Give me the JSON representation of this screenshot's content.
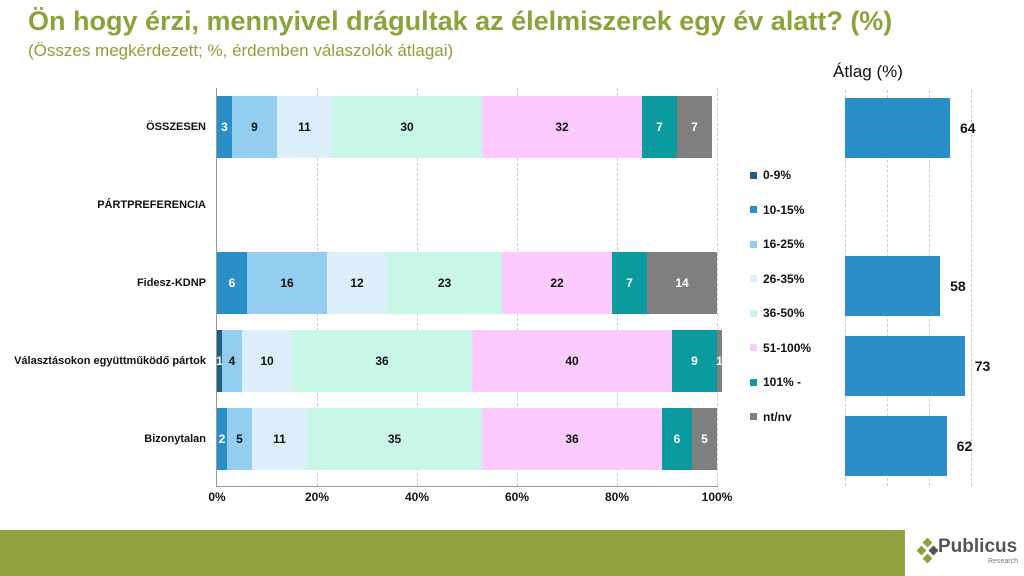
{
  "title": "Ön hogy érzi, mennyivel drágultak az élelmiszerek egy év alatt? (%)",
  "subtitle": "(Összes megkérdezett; %, érdemben válaszolók átlagai)",
  "logo": {
    "name": "Publicus",
    "sub": "Research"
  },
  "chart_data": [
    {
      "type": "bar",
      "stacked": true,
      "orientation": "horizontal",
      "categories": [
        "ÖSSZESEN",
        "PÁRTPREFERENCIA",
        "Fidesz-KDNP",
        "Választásokon együttműködő pártok",
        "Bizonytalan"
      ],
      "series": [
        {
          "name": "0-9%",
          "color": "#1f5f80",
          "values": [
            0,
            null,
            0,
            1,
            0
          ]
        },
        {
          "name": "10-15%",
          "color": "#2a8fc7",
          "values": [
            3,
            null,
            6,
            0,
            2
          ]
        },
        {
          "name": "16-25%",
          "color": "#93cdef",
          "values": [
            9,
            null,
            16,
            4,
            5
          ]
        },
        {
          "name": "26-35%",
          "color": "#dbeef9",
          "values": [
            11,
            null,
            12,
            10,
            11
          ]
        },
        {
          "name": "36-50%",
          "color": "#c8f7e8",
          "values": [
            30,
            null,
            23,
            36,
            35
          ]
        },
        {
          "name": "51-100%",
          "color": "#fdcaff",
          "values": [
            32,
            null,
            22,
            40,
            36
          ]
        },
        {
          "name": "101% -",
          "color": "#0b9a9e",
          "values": [
            7,
            null,
            7,
            9,
            6
          ]
        },
        {
          "name": "nt/nv",
          "color": "#7f7f7f",
          "values": [
            7,
            null,
            14,
            1,
            5
          ]
        }
      ],
      "xticks": [
        "0%",
        "20%",
        "40%",
        "60%",
        "80%",
        "100%"
      ],
      "xlim": [
        0,
        100
      ],
      "legend": "right"
    },
    {
      "type": "bar",
      "orientation": "horizontal",
      "title": "Átlag (%)",
      "categories": [
        "ÖSSZESEN",
        "Fidesz-KDNP",
        "Választásokon együttműködő pártok",
        "Bizonytalan"
      ],
      "values": [
        64,
        58,
        73,
        62
      ],
      "color": "#2a8fc7"
    }
  ]
}
